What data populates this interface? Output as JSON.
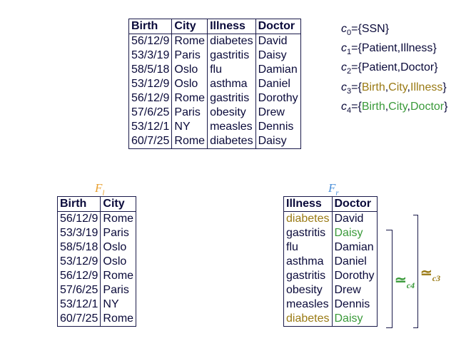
{
  "main_table": {
    "headers": [
      "Birth",
      "City",
      "Illness",
      "Doctor"
    ],
    "rows": [
      [
        "56/12/9",
        "Rome",
        "diabetes",
        "David"
      ],
      [
        "53/3/19",
        "Paris",
        "gastritis",
        "Daisy"
      ],
      [
        "58/5/18",
        "Oslo",
        "flu",
        "Damian"
      ],
      [
        "53/12/9",
        "Oslo",
        "asthma",
        "Daniel"
      ],
      [
        "56/12/9",
        "Rome",
        "gastritis",
        "Dorothy"
      ],
      [
        "57/6/25",
        "Paris",
        "obesity",
        "Drew"
      ],
      [
        "53/12/1",
        "NY",
        "measles",
        "Dennis"
      ],
      [
        "60/7/25",
        "Rome",
        "diabetes",
        "Daisy"
      ]
    ]
  },
  "constraints": [
    {
      "name": "c",
      "sub": "0",
      "prefix": "={",
      "items": [
        "SSN"
      ],
      "color": "#0a0a3a"
    },
    {
      "name": "c",
      "sub": "1",
      "prefix": "={",
      "items": [
        "Patient",
        "Illness"
      ],
      "color": "#0a0a3a"
    },
    {
      "name": "c",
      "sub": "2",
      "prefix": "={",
      "items": [
        "Patient",
        "Doctor"
      ],
      "color": "#0a0a3a"
    },
    {
      "name": "c",
      "sub": "3",
      "prefix": "={",
      "items": [
        "Birth",
        "City",
        "Illness"
      ],
      "color": "#9a7a14"
    },
    {
      "name": "c",
      "sub": "4",
      "prefix": "={",
      "items": [
        "Birth",
        "City",
        "Doctor"
      ],
      "color": "#3a9a3a"
    }
  ],
  "left_fragment": {
    "label": "F",
    "label_sub": "l",
    "headers": [
      "Birth",
      "City"
    ],
    "rows": [
      [
        "56/12/9",
        "Rome"
      ],
      [
        "53/3/19",
        "Paris"
      ],
      [
        "58/5/18",
        "Oslo"
      ],
      [
        "53/12/9",
        "Oslo"
      ],
      [
        "56/12/9",
        "Rome"
      ],
      [
        "57/6/25",
        "Paris"
      ],
      [
        "53/12/1",
        "NY"
      ],
      [
        "60/7/25",
        "Rome"
      ]
    ]
  },
  "right_fragment": {
    "label": "F",
    "label_sub": "r",
    "headers": [
      "Illness",
      "Doctor"
    ],
    "rows": [
      [
        {
          "v": "diabetes",
          "c": "gold"
        },
        {
          "v": "David",
          "c": ""
        }
      ],
      [
        {
          "v": "gastritis",
          "c": ""
        },
        {
          "v": "Daisy",
          "c": "green"
        }
      ],
      [
        {
          "v": "flu",
          "c": ""
        },
        {
          "v": "Damian",
          "c": ""
        }
      ],
      [
        {
          "v": "asthma",
          "c": ""
        },
        {
          "v": "Daniel",
          "c": ""
        }
      ],
      [
        {
          "v": "gastritis",
          "c": ""
        },
        {
          "v": "Dorothy",
          "c": ""
        }
      ],
      [
        {
          "v": "obesity",
          "c": ""
        },
        {
          "v": "Drew",
          "c": ""
        }
      ],
      [
        {
          "v": "measles",
          "c": ""
        },
        {
          "v": "Dennis",
          "c": ""
        }
      ],
      [
        {
          "v": "diabetes",
          "c": "gold"
        },
        {
          "v": "Daisy",
          "c": "green"
        }
      ]
    ]
  },
  "equivalences": {
    "c4": {
      "symbol": "≃",
      "sub": "c4",
      "color": "#3a9a3a"
    },
    "c3": {
      "symbol": "≃",
      "sub": "c3",
      "color": "#9a7a14"
    }
  }
}
